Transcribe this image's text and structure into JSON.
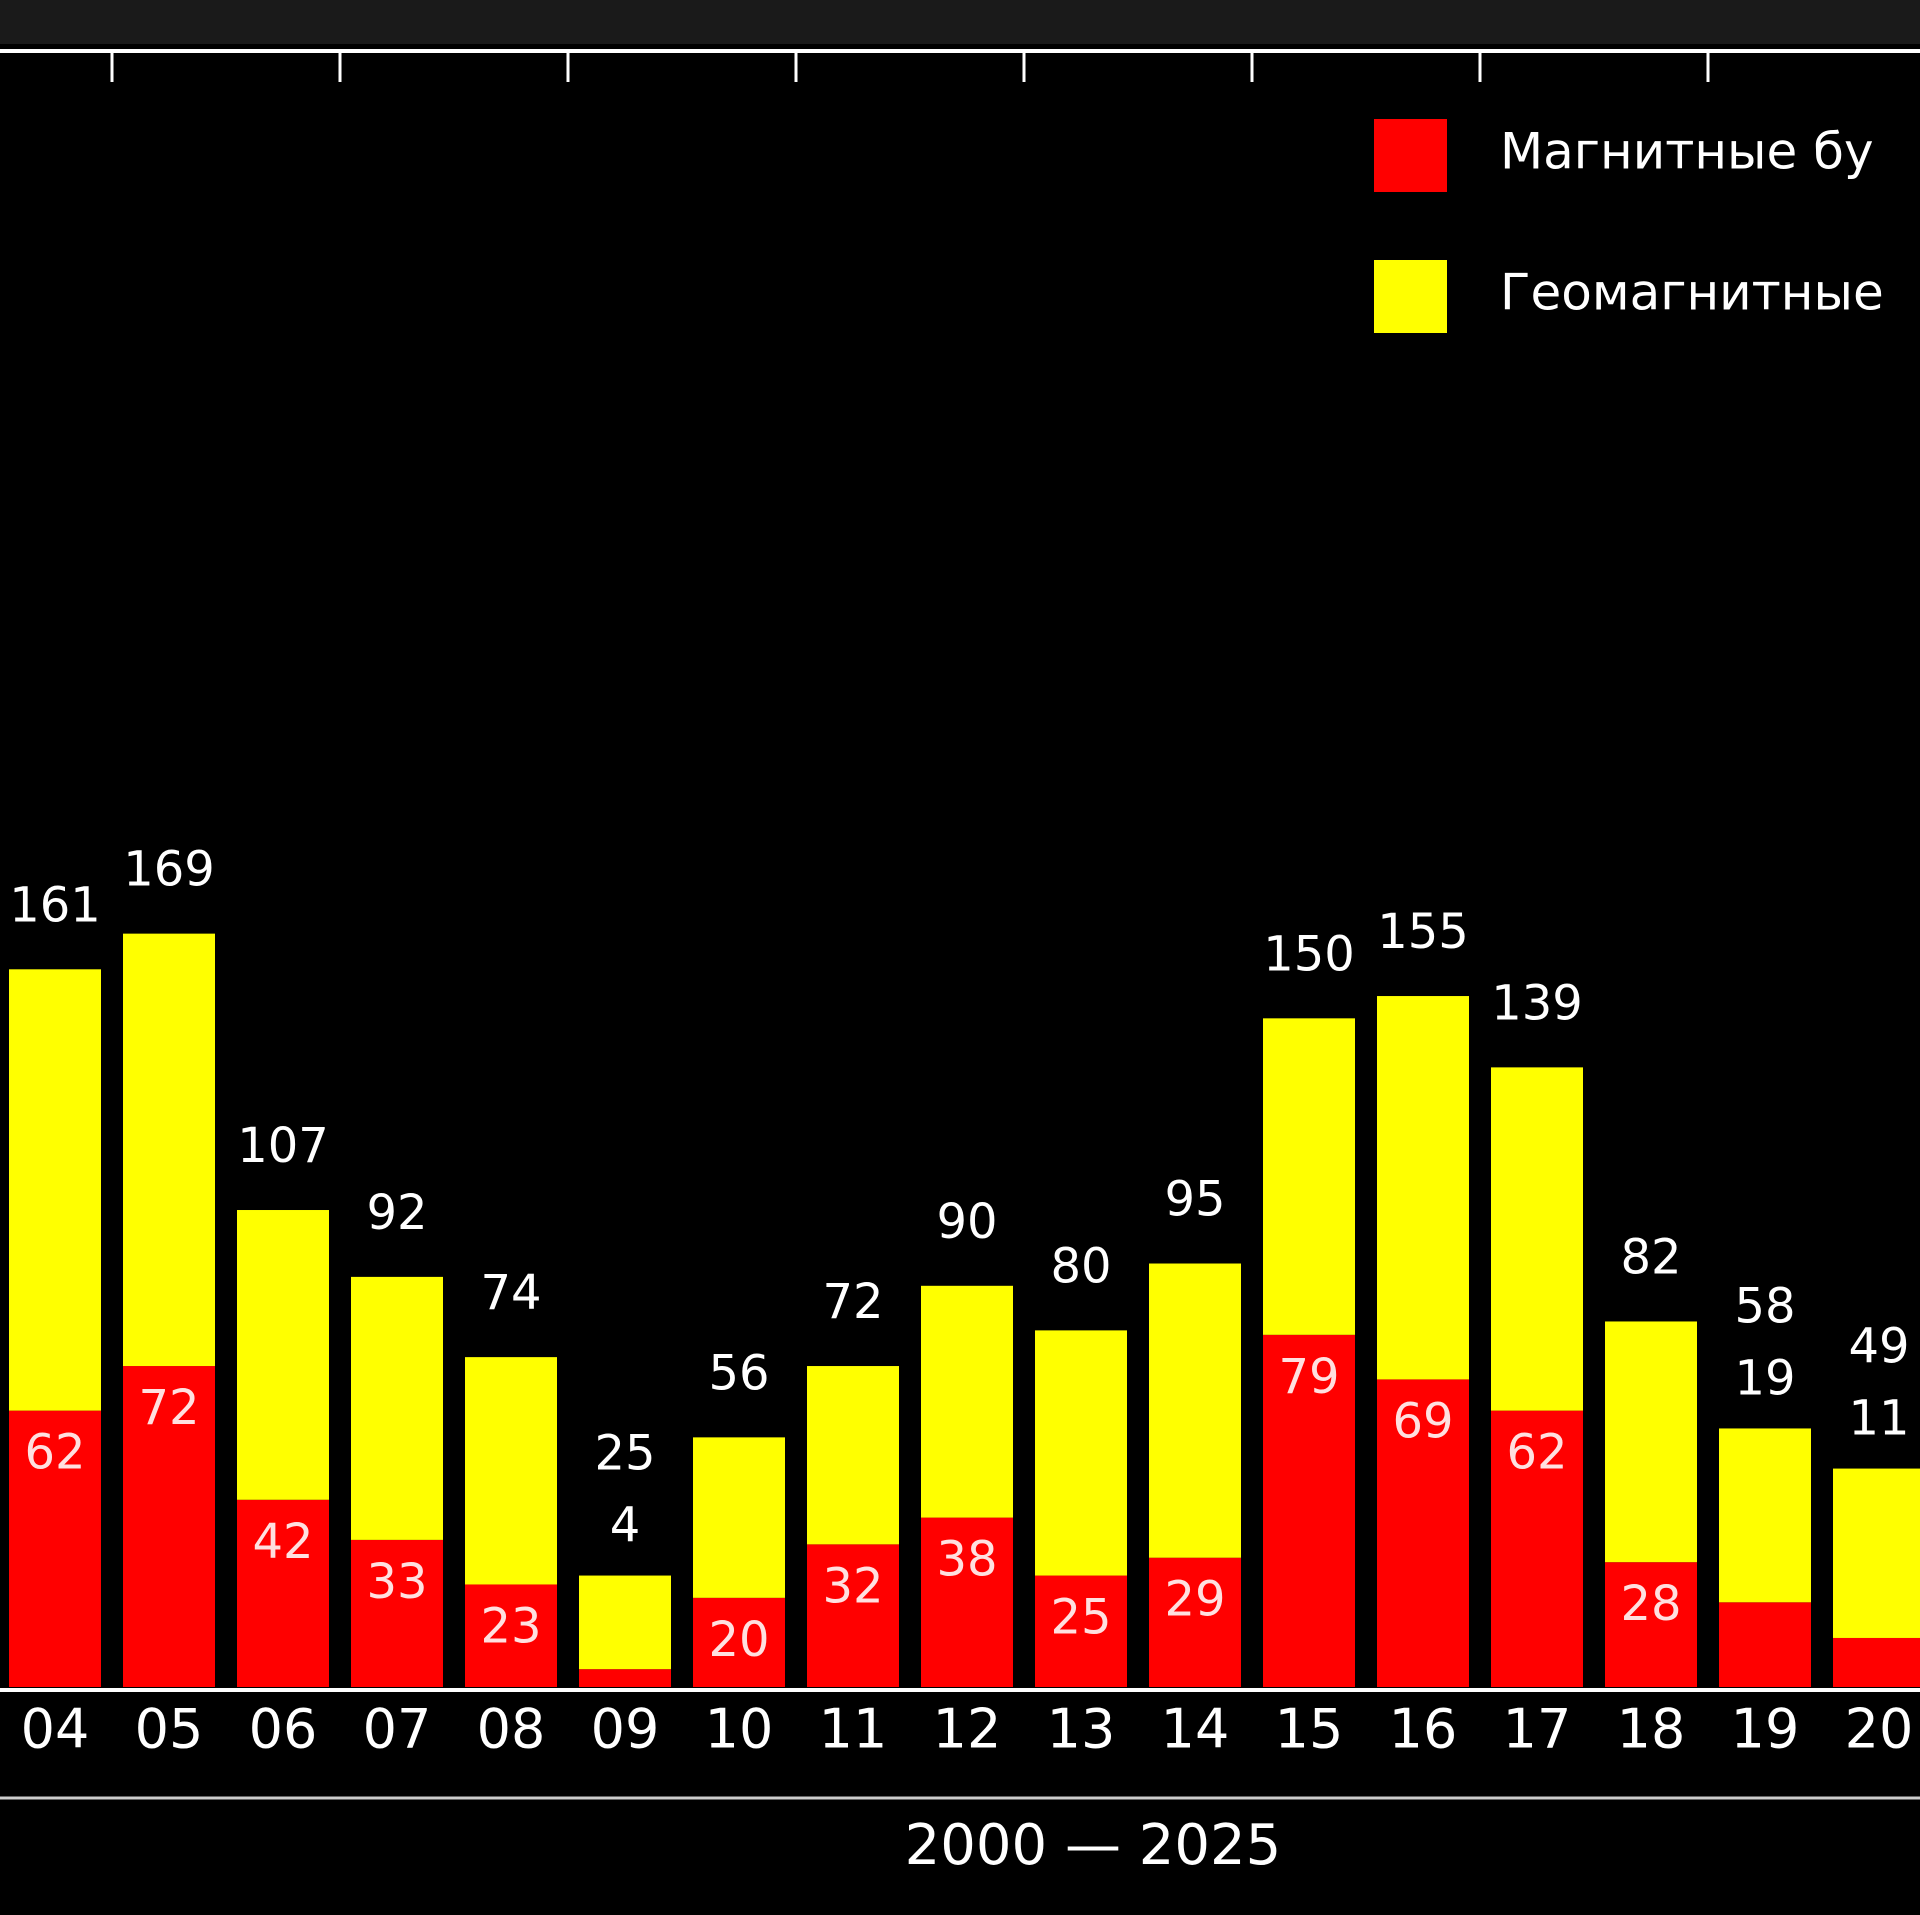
{
  "chart_data": {
    "type": "stacked_bar",
    "categories": [
      "04",
      "05",
      "06",
      "07",
      "08",
      "09",
      "10",
      "11",
      "12",
      "13",
      "14",
      "15",
      "16",
      "17",
      "18",
      "19",
      "20"
    ],
    "series": [
      {
        "name": "Магнитные бу",
        "color": "#ff0000",
        "values": [
          62,
          72,
          42,
          33,
          23,
          4,
          20,
          32,
          38,
          25,
          29,
          79,
          69,
          62,
          28,
          19,
          11
        ]
      },
      {
        "name": "Геомагнитные",
        "color": "#ffff00",
        "values": [
          99,
          97,
          65,
          59,
          51,
          21,
          36,
          40,
          52,
          55,
          66,
          71,
          86,
          77,
          54,
          39,
          38
        ]
      }
    ],
    "totals": [
      161,
      169,
      107,
      92,
      74,
      25,
      56,
      72,
      90,
      80,
      95,
      150,
      155,
      139,
      82,
      58,
      49
    ],
    "x_label": "2000 — 2025",
    "ylim": [
      0,
      367
    ]
  }
}
